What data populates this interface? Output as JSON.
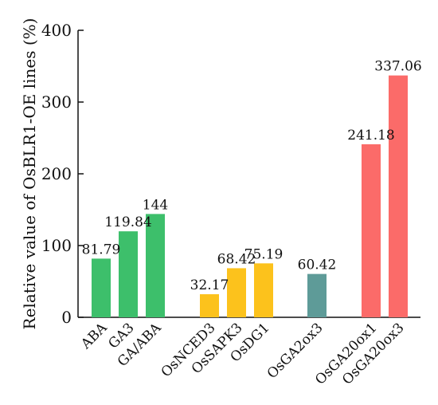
{
  "chart_data": {
    "type": "bar",
    "ylabel": "Relative value of OsBLR1-OE lines (%)",
    "xlabel": "",
    "ylim": [
      0,
      400
    ],
    "yticks": [
      0,
      100,
      200,
      300,
      400
    ],
    "grid": false,
    "categories": [
      "ABA",
      "GA3",
      "GA/ABA",
      "OsNCED3",
      "OsSAPK3",
      "OsDG1",
      "OsGA2ox3",
      "OsGA20ox1",
      "OsGA20ox3"
    ],
    "values": [
      81.79,
      119.84,
      144,
      32.17,
      68.42,
      75.19,
      60.42,
      241.18,
      337.06
    ],
    "value_labels": [
      "81.79",
      "119.84",
      "144",
      "32.17",
      "68.42",
      "75.19",
      "60.42",
      "241.18",
      "337.06"
    ],
    "groups": [
      {
        "members": [
          0,
          1,
          2
        ],
        "color": "#3dbf6b"
      },
      {
        "members": [
          3,
          4,
          5
        ],
        "color": "#fcc21c"
      },
      {
        "members": [
          6
        ],
        "color": "#5e9b98"
      },
      {
        "members": [
          7,
          8
        ],
        "color": "#fb6b69"
      }
    ]
  }
}
